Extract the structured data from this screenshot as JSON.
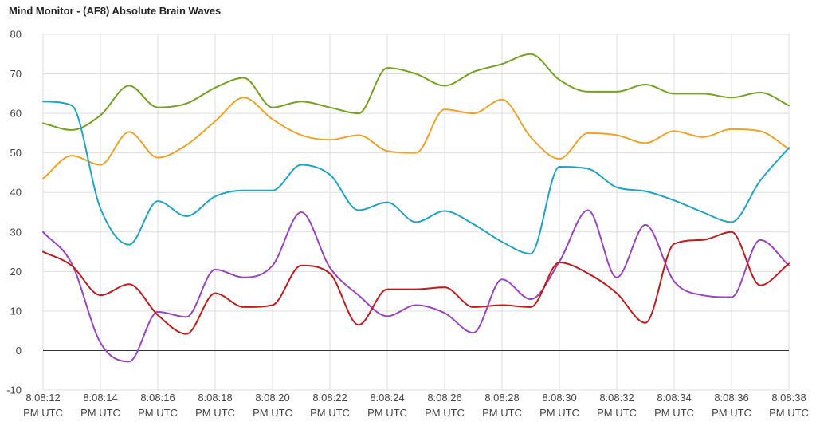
{
  "chart_data": {
    "type": "line",
    "title": "Mind Monitor - (AF8) Absolute Brain Waves",
    "xlabel": "",
    "ylabel": "",
    "ylim": [
      -10,
      80
    ],
    "yticks": [
      "80",
      "70",
      "60",
      "50",
      "40",
      "30",
      "20",
      "10",
      "0",
      "-10"
    ],
    "grid": true,
    "legend": "none",
    "baseline": 0,
    "x": [
      0,
      1,
      2,
      3,
      4,
      5,
      6,
      7,
      8,
      9,
      10,
      11,
      12,
      13,
      14,
      15,
      16,
      17,
      18,
      19,
      20,
      21,
      22,
      23,
      24,
      25,
      26
    ],
    "xticks": [
      {
        "time": "8:08:12",
        "tz": "PM UTC"
      },
      {
        "time": "8:08:14",
        "tz": "PM UTC"
      },
      {
        "time": "8:08:16",
        "tz": "PM UTC"
      },
      {
        "time": "8:08:18",
        "tz": "PM UTC"
      },
      {
        "time": "8:08:20",
        "tz": "PM UTC"
      },
      {
        "time": "8:08:22",
        "tz": "PM UTC"
      },
      {
        "time": "8:08:24",
        "tz": "PM UTC"
      },
      {
        "time": "8:08:26",
        "tz": "PM UTC"
      },
      {
        "time": "8:08:28",
        "tz": "PM UTC"
      },
      {
        "time": "8:08:30",
        "tz": "PM UTC"
      },
      {
        "time": "8:08:32",
        "tz": "PM UTC"
      },
      {
        "time": "8:08:34",
        "tz": "PM UTC"
      },
      {
        "time": "8:08:36",
        "tz": "PM UTC"
      },
      {
        "time": "8:08:38",
        "tz": "PM UTC"
      }
    ],
    "series": [
      {
        "color": "#73a21d",
        "values": [
          57.5,
          55.8,
          59.5,
          67,
          61.5,
          62.5,
          66.5,
          69,
          61.5,
          63,
          61.5,
          60,
          71.5,
          70,
          67,
          70.5,
          72.5,
          75,
          68.5,
          65.5,
          65.5,
          67.3,
          65,
          65,
          64,
          65.3,
          62
        ]
      },
      {
        "color": "#eda329",
        "values": [
          43.5,
          49.3,
          47,
          55.3,
          48.8,
          52,
          58,
          64,
          58.5,
          54.5,
          53.3,
          54.5,
          50.5,
          50,
          61,
          60,
          63.5,
          54,
          48.5,
          55,
          54.5,
          52.5,
          55.5,
          54,
          56,
          55.5,
          51
        ]
      },
      {
        "color": "#1ea5c6",
        "values": [
          63,
          62,
          36,
          26.8,
          37.8,
          34,
          39,
          40.5,
          40.5,
          47,
          44.5,
          35.5,
          37.5,
          32.5,
          35.3,
          32,
          27.5,
          24.5,
          46.5,
          46,
          41.3,
          40.3,
          38,
          35,
          32.5,
          43,
          51.3
        ]
      },
      {
        "color": "#9a44c3",
        "values": [
          30,
          22,
          2,
          -2.8,
          9.8,
          8.5,
          20.5,
          18.5,
          21.5,
          35,
          21,
          14,
          8.7,
          11.5,
          9.5,
          4.5,
          18,
          13,
          22.5,
          35.5,
          18.5,
          31.8,
          17.5,
          14,
          13.5,
          28,
          21.5
        ]
      },
      {
        "color": "#c21b1b",
        "values": [
          25,
          21.5,
          14,
          16.8,
          9,
          4.2,
          14.5,
          11,
          11.5,
          21.5,
          19.5,
          6.5,
          15.5,
          15.5,
          16,
          11,
          11.5,
          11,
          22.3,
          19.5,
          14.5,
          7,
          27,
          28,
          30,
          16.5,
          22
        ]
      }
    ]
  }
}
